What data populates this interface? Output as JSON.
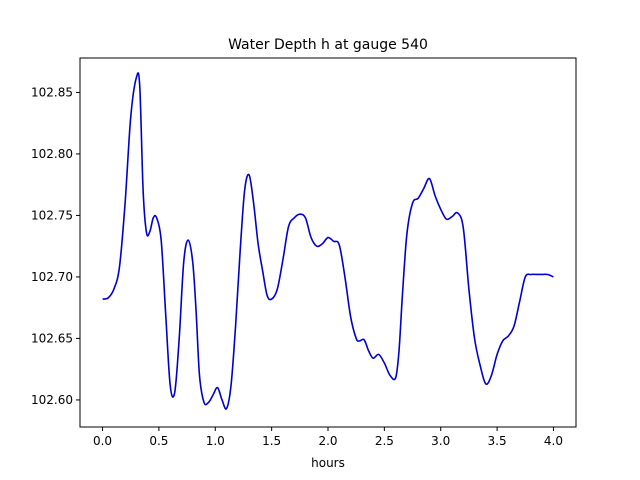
{
  "chart_data": {
    "type": "line",
    "title": "Water Depth h at gauge 540",
    "xlabel": "hours",
    "ylabel": "",
    "xlim": [
      -0.2,
      4.2
    ],
    "ylim": [
      102.578,
      102.878
    ],
    "xticks": [
      0.0,
      0.5,
      1.0,
      1.5,
      2.0,
      2.5,
      3.0,
      3.5,
      4.0
    ],
    "xtick_labels": [
      "0.0",
      "0.5",
      "1.0",
      "1.5",
      "2.0",
      "2.5",
      "3.0",
      "3.5",
      "4.0"
    ],
    "yticks": [
      102.6,
      102.65,
      102.7,
      102.75,
      102.8,
      102.85
    ],
    "ytick_labels": [
      "102.60",
      "102.65",
      "102.70",
      "102.75",
      "102.80",
      "102.85"
    ],
    "grid": false,
    "series": [
      {
        "color": "#0000cc",
        "x": [
          0.0,
          0.05,
          0.1,
          0.15,
          0.2,
          0.25,
          0.3,
          0.33,
          0.36,
          0.39,
          0.42,
          0.45,
          0.48,
          0.52,
          0.56,
          0.6,
          0.64,
          0.68,
          0.72,
          0.76,
          0.8,
          0.83,
          0.86,
          0.9,
          0.94,
          0.98,
          1.02,
          1.06,
          1.1,
          1.14,
          1.18,
          1.22,
          1.26,
          1.3,
          1.34,
          1.38,
          1.42,
          1.46,
          1.5,
          1.55,
          1.6,
          1.65,
          1.7,
          1.75,
          1.8,
          1.85,
          1.9,
          1.95,
          2.0,
          2.05,
          2.1,
          2.15,
          2.2,
          2.25,
          2.28,
          2.32,
          2.36,
          2.4,
          2.45,
          2.5,
          2.55,
          2.6,
          2.63,
          2.66,
          2.7,
          2.75,
          2.8,
          2.85,
          2.9,
          2.95,
          3.0,
          3.05,
          3.1,
          3.15,
          3.2,
          3.25,
          3.3,
          3.35,
          3.4,
          3.45,
          3.5,
          3.55,
          3.6,
          3.65,
          3.7,
          3.75,
          3.8,
          3.85,
          3.9,
          3.95,
          4.0
        ],
        "y": [
          102.682,
          102.683,
          102.69,
          102.708,
          102.76,
          102.83,
          102.862,
          102.855,
          102.77,
          102.736,
          102.737,
          102.748,
          102.748,
          102.73,
          102.67,
          102.612,
          102.606,
          102.65,
          102.712,
          102.73,
          102.712,
          102.672,
          102.62,
          102.598,
          102.598,
          102.604,
          102.61,
          102.6,
          102.593,
          102.612,
          102.66,
          102.72,
          102.77,
          102.783,
          102.76,
          102.727,
          102.705,
          102.685,
          102.682,
          102.69,
          102.714,
          102.741,
          102.748,
          102.751,
          102.748,
          102.732,
          102.725,
          102.727,
          102.732,
          102.729,
          102.726,
          102.7,
          102.668,
          102.65,
          102.648,
          102.649,
          102.64,
          102.634,
          102.637,
          102.63,
          102.62,
          102.618,
          102.64,
          102.685,
          102.735,
          102.76,
          102.764,
          102.772,
          102.78,
          102.766,
          102.755,
          102.747,
          102.749,
          102.752,
          102.74,
          102.69,
          102.65,
          102.628,
          102.613,
          102.62,
          102.637,
          102.648,
          102.652,
          102.66,
          102.68,
          102.7,
          102.702,
          102.702,
          102.702,
          102.702,
          102.7
        ]
      }
    ]
  }
}
